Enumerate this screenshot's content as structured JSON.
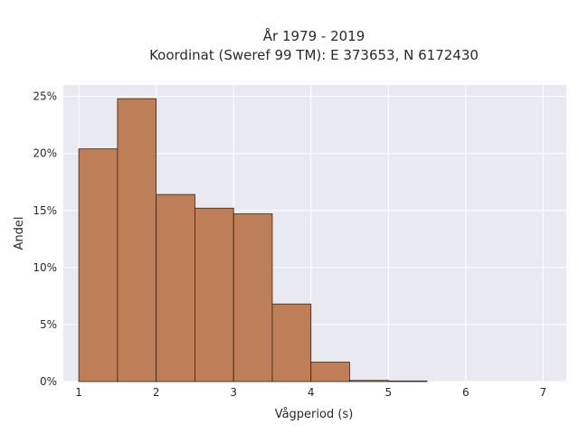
{
  "chart_data": {
    "type": "bar",
    "title_line1": "År 1979 - 2019",
    "title_line2": "Koordinat (Sweref 99 TM): E 373653, N 6172430",
    "xlabel": "Vågperiod (s)",
    "ylabel": "Andel",
    "x_ticks": [
      "1",
      "2",
      "3",
      "4",
      "5",
      "6",
      "7"
    ],
    "y_ticks": [
      "0%",
      "5%",
      "10%",
      "15%",
      "20%",
      "25%"
    ],
    "xlim": [
      0.8,
      7.3
    ],
    "ylim": [
      0,
      26
    ],
    "bin_edges": [
      1.0,
      1.5,
      2.0,
      2.5,
      3.0,
      3.5,
      4.0,
      4.5,
      5.0,
      5.5
    ],
    "values": [
      20.4,
      24.8,
      16.4,
      15.2,
      14.7,
      6.8,
      1.7,
      0.1,
      0.05
    ],
    "value_unit": "%",
    "grid": true,
    "colors": {
      "plot_background": "#e9e9f1",
      "grid": "#ffffff",
      "bar_fill": "#bd7e58",
      "bar_edge": "#3b2410"
    }
  }
}
